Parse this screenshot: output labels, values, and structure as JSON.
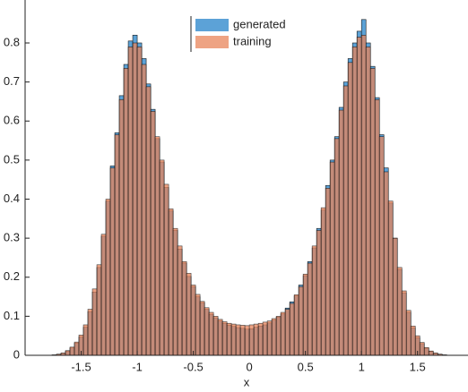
{
  "chart_data": {
    "type": "histogram",
    "xlabel": "x",
    "bins": [
      -1.76,
      -1.72,
      -1.68,
      -1.64,
      -1.6,
      -1.56,
      -1.52,
      -1.48,
      -1.44,
      -1.4,
      -1.36,
      -1.32,
      -1.28,
      -1.24,
      -1.2,
      -1.16,
      -1.12,
      -1.08,
      -1.04,
      -1,
      -0.96,
      -0.92,
      -0.88,
      -0.84,
      -0.8,
      -0.76,
      -0.72,
      -0.68,
      -0.64,
      -0.6,
      -0.56,
      -0.52,
      -0.48,
      -0.44,
      -0.4,
      -0.36,
      -0.32,
      -0.28,
      -0.24,
      -0.2,
      -0.16,
      -0.12,
      -0.08,
      -0.04,
      0,
      0.04,
      0.08,
      0.12,
      0.16,
      0.2,
      0.24,
      0.28,
      0.32,
      0.36,
      0.4,
      0.44,
      0.48,
      0.52,
      0.56,
      0.6,
      0.64,
      0.68,
      0.72,
      0.76,
      0.8,
      0.84,
      0.88,
      0.92,
      0.96,
      1,
      1.04,
      1.08,
      1.12,
      1.16,
      1.2,
      1.24,
      1.28,
      1.32,
      1.36,
      1.4,
      1.44,
      1.48,
      1.52,
      1.56,
      1.6,
      1.64,
      1.68,
      1.72,
      1.76
    ],
    "series": [
      {
        "name": "generated",
        "color": "#4a98d3",
        "opacity": 0.9,
        "values": [
          0.001,
          0.002,
          0.005,
          0.011,
          0.019,
          0.031,
          0.047,
          0.072,
          0.112,
          0.162,
          0.225,
          0.305,
          0.395,
          0.485,
          0.57,
          0.665,
          0.745,
          0.805,
          0.82,
          0.8,
          0.76,
          0.695,
          0.63,
          0.555,
          0.495,
          0.43,
          0.37,
          0.32,
          0.272,
          0.236,
          0.202,
          0.176,
          0.15,
          0.135,
          0.118,
          0.105,
          0.096,
          0.088,
          0.082,
          0.077,
          0.074,
          0.071,
          0.069,
          0.067,
          0.068,
          0.072,
          0.075,
          0.078,
          0.083,
          0.09,
          0.098,
          0.106,
          0.121,
          0.137,
          0.152,
          0.18,
          0.204,
          0.24,
          0.275,
          0.325,
          0.372,
          0.435,
          0.5,
          0.56,
          0.635,
          0.7,
          0.76,
          0.8,
          0.83,
          0.86,
          0.8,
          0.74,
          0.66,
          0.565,
          0.48,
          0.39,
          0.3,
          0.22,
          0.16,
          0.11,
          0.07,
          0.045,
          0.03,
          0.018,
          0.01,
          0.005,
          0.002,
          0.001
        ]
      },
      {
        "name": "training",
        "color": "#e8845a",
        "opacity": 0.75,
        "values": [
          0.001,
          0.003,
          0.006,
          0.012,
          0.021,
          0.034,
          0.052,
          0.078,
          0.118,
          0.17,
          0.232,
          0.31,
          0.4,
          0.48,
          0.565,
          0.655,
          0.735,
          0.79,
          0.8,
          0.79,
          0.745,
          0.688,
          0.625,
          0.56,
          0.5,
          0.438,
          0.375,
          0.325,
          0.28,
          0.24,
          0.21,
          0.18,
          0.156,
          0.138,
          0.122,
          0.11,
          0.1,
          0.092,
          0.086,
          0.082,
          0.08,
          0.078,
          0.077,
          0.076,
          0.078,
          0.08,
          0.082,
          0.085,
          0.088,
          0.094,
          0.1,
          0.11,
          0.118,
          0.133,
          0.155,
          0.176,
          0.208,
          0.236,
          0.28,
          0.32,
          0.378,
          0.428,
          0.495,
          0.555,
          0.628,
          0.69,
          0.75,
          0.79,
          0.815,
          0.82,
          0.79,
          0.735,
          0.655,
          0.56,
          0.47,
          0.395,
          0.3,
          0.225,
          0.165,
          0.115,
          0.075,
          0.05,
          0.033,
          0.02,
          0.011,
          0.006,
          0.003,
          0.001
        ]
      }
    ],
    "xlim": [
      -2,
      1.95
    ],
    "ylim": [
      0,
      0.91
    ],
    "xticks": [
      -1.5,
      -1,
      -0.5,
      0,
      0.5,
      1,
      1.5
    ],
    "yticks": [
      0,
      0.1,
      0.2,
      0.3,
      0.4,
      0.5,
      0.6,
      0.7,
      0.8
    ],
    "legend": "top-center"
  }
}
